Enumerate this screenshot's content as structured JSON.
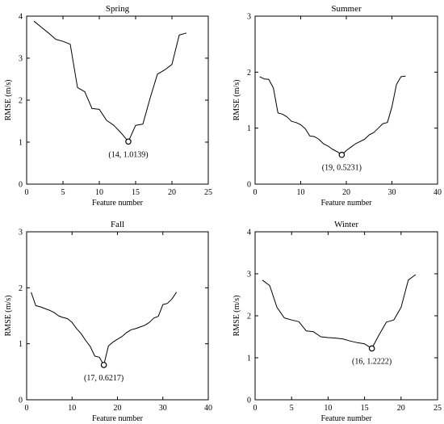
{
  "chart_data": [
    {
      "type": "line",
      "title": "Spring",
      "xlabel": "Feature number",
      "ylabel": "RMSE (m/s)",
      "xlim": [
        0,
        25
      ],
      "ylim": [
        0,
        4
      ],
      "xticks": [
        0,
        5,
        10,
        15,
        20,
        25
      ],
      "yticks": [
        0,
        1,
        2,
        3,
        4
      ],
      "grid": false,
      "x": [
        1,
        2,
        3,
        4,
        5,
        6,
        7,
        8,
        9,
        10,
        11,
        12,
        13,
        14,
        15,
        16,
        17,
        18,
        19,
        20,
        21,
        22
      ],
      "y": [
        3.88,
        3.74,
        3.6,
        3.45,
        3.4,
        3.33,
        2.3,
        2.2,
        1.8,
        1.78,
        1.52,
        1.4,
        1.22,
        1.0139,
        1.4,
        1.43,
        2.05,
        2.62,
        2.72,
        2.85,
        3.55,
        3.6
      ],
      "min_point": {
        "x": 14,
        "y": 1.0139
      },
      "annotation": "(14, 1.0139)"
    },
    {
      "type": "line",
      "title": "Summer",
      "xlabel": "Feature number",
      "ylabel": "RMSE (m/s)",
      "xlim": [
        0,
        40
      ],
      "ylim": [
        0,
        3
      ],
      "xticks": [
        0,
        10,
        20,
        30,
        40
      ],
      "yticks": [
        0,
        1,
        2,
        3
      ],
      "grid": false,
      "x": [
        1,
        2,
        3,
        4,
        5,
        6,
        7,
        8,
        9,
        10,
        11,
        12,
        13,
        14,
        15,
        16,
        17,
        18,
        19,
        20,
        21,
        22,
        23,
        24,
        25,
        26,
        27,
        28,
        29,
        30,
        31,
        32,
        33
      ],
      "y": [
        1.92,
        1.88,
        1.87,
        1.72,
        1.27,
        1.25,
        1.2,
        1.12,
        1.1,
        1.06,
        0.99,
        0.86,
        0.85,
        0.8,
        0.72,
        0.68,
        0.62,
        0.58,
        0.5231,
        0.6,
        0.66,
        0.72,
        0.76,
        0.8,
        0.88,
        0.92,
        1.0,
        1.08,
        1.1,
        1.38,
        1.78,
        1.92,
        1.93
      ],
      "min_point": {
        "x": 19,
        "y": 0.5231
      },
      "annotation": "(19, 0.5231)"
    },
    {
      "type": "line",
      "title": "Fall",
      "xlabel": "Feature number",
      "ylabel": "RMSE (m/s)",
      "xlim": [
        0,
        40
      ],
      "ylim": [
        0,
        3
      ],
      "xticks": [
        0,
        10,
        20,
        30,
        40
      ],
      "yticks": [
        0,
        1,
        2,
        3
      ],
      "grid": false,
      "x": [
        1,
        2,
        3,
        4,
        5,
        6,
        7,
        8,
        9,
        10,
        11,
        12,
        13,
        14,
        15,
        16,
        17,
        18,
        19,
        20,
        21,
        22,
        23,
        24,
        25,
        26,
        27,
        28,
        29,
        30,
        31,
        32,
        33
      ],
      "y": [
        1.92,
        1.68,
        1.66,
        1.63,
        1.6,
        1.56,
        1.5,
        1.47,
        1.45,
        1.38,
        1.27,
        1.18,
        1.06,
        0.95,
        0.78,
        0.76,
        0.6217,
        0.96,
        1.03,
        1.08,
        1.13,
        1.2,
        1.25,
        1.27,
        1.3,
        1.33,
        1.38,
        1.46,
        1.49,
        1.7,
        1.72,
        1.8,
        1.92
      ],
      "min_point": {
        "x": 17,
        "y": 0.6217
      },
      "annotation": "(17, 0.6217)"
    },
    {
      "type": "line",
      "title": "Winter",
      "xlabel": "Feature number",
      "ylabel": "RMSE (m/s)",
      "xlim": [
        0,
        25
      ],
      "ylim": [
        0,
        4
      ],
      "xticks": [
        0,
        5,
        10,
        15,
        20,
        25
      ],
      "yticks": [
        0,
        1,
        2,
        3,
        4
      ],
      "grid": false,
      "x": [
        1,
        2,
        3,
        4,
        5,
        6,
        7,
        8,
        9,
        10,
        11,
        12,
        13,
        14,
        15,
        16,
        17,
        18,
        19,
        20,
        21,
        22
      ],
      "y": [
        2.85,
        2.72,
        2.2,
        1.95,
        1.9,
        1.86,
        1.64,
        1.62,
        1.5,
        1.48,
        1.47,
        1.45,
        1.4,
        1.36,
        1.33,
        1.2222,
        1.55,
        1.85,
        1.9,
        2.2,
        2.85,
        2.98
      ],
      "min_point": {
        "x": 16,
        "y": 1.2222
      },
      "annotation": "(16, 1.2222)"
    }
  ]
}
